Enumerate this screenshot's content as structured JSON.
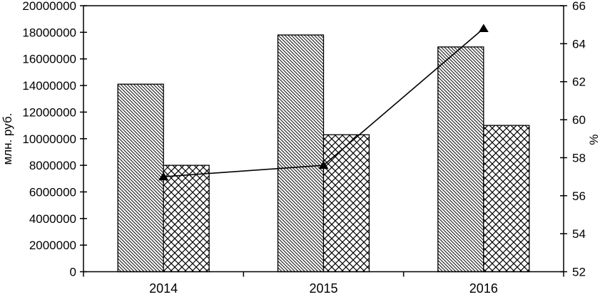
{
  "chart_data": {
    "type": "combo-bar-line",
    "title": "",
    "legend": "none",
    "grid": "off",
    "categories": [
      "2014",
      "2015",
      "2016"
    ],
    "series": [
      {
        "name": "bar-series-1-diagonal-hatch",
        "type": "bar",
        "axis": "left",
        "pattern": "diagonal-hatch",
        "values": [
          14100000,
          17800000,
          16900000
        ]
      },
      {
        "name": "bar-series-2-crosshatch",
        "type": "bar",
        "axis": "left",
        "pattern": "crosshatch",
        "values": [
          8000000,
          10300000,
          11000000
        ]
      },
      {
        "name": "line-series-percent",
        "type": "line",
        "axis": "right",
        "marker": "triangle-filled",
        "values": [
          57.0,
          57.6,
          64.8
        ]
      }
    ],
    "left_axis": {
      "label": "млн. руб.",
      "min": 0,
      "max": 20000000,
      "step": 2000000,
      "tick_labels": [
        "20000000",
        "18000000",
        "16000000",
        "14000000",
        "12000000",
        "10000000",
        "8000000",
        "6000000",
        "4000000",
        "2000000",
        "0"
      ]
    },
    "right_axis": {
      "label": "%",
      "min": 52,
      "max": 66,
      "step": 2,
      "tick_labels": [
        "66",
        "64",
        "62",
        "60",
        "58",
        "56",
        "54",
        "52"
      ]
    },
    "x_axis": {
      "label": "",
      "tick_labels": [
        "2014",
        "2015",
        "2016"
      ]
    },
    "colors": {
      "stroke": "#000000",
      "bar_fill": "#ffffff",
      "background": "#ffffff"
    }
  }
}
